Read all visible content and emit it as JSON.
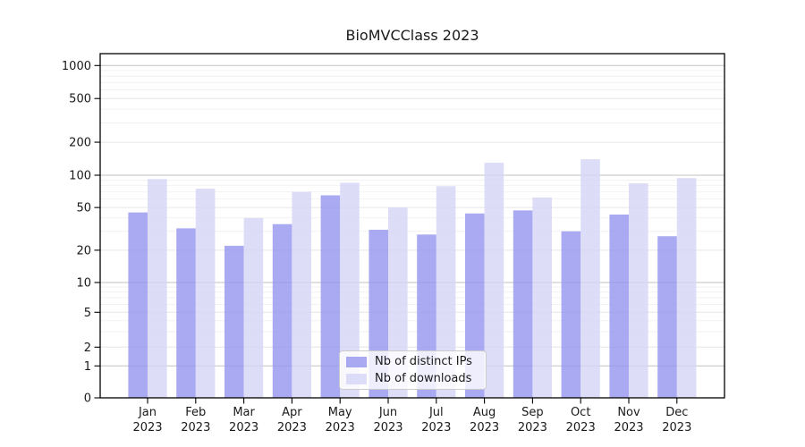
{
  "chart_data": {
    "type": "bar",
    "title": "BioMVCClass 2023",
    "xlabel": "",
    "ylabel": "",
    "yscale": "symlog",
    "ylim": [
      0,
      1300
    ],
    "grid": true,
    "legend_position": "lower center",
    "yticks": [
      0,
      1,
      2,
      5,
      10,
      20,
      50,
      100,
      200,
      500,
      1000
    ],
    "categories": [
      "Jan",
      "Feb",
      "Mar",
      "Apr",
      "May",
      "Jun",
      "Jul",
      "Aug",
      "Sep",
      "Oct",
      "Nov",
      "Dec"
    ],
    "category_year": "2023",
    "series": [
      {
        "name": "Nb of distinct IPs",
        "color": "#9595ef",
        "values": [
          45,
          32,
          22,
          35,
          65,
          31,
          28,
          44,
          47,
          30,
          43,
          27
        ]
      },
      {
        "name": "Nb of downloads",
        "color": "#d4d4f6",
        "values": [
          92,
          75,
          40,
          70,
          85,
          50,
          79,
          130,
          62,
          140,
          84,
          94
        ]
      }
    ]
  },
  "colors": {
    "axis": "#000000",
    "text": "#1a1a1a",
    "grid_decade": "#c2c2c2",
    "grid_labeled": "#e6e6e6",
    "grid_minor": "#f2f2f2"
  }
}
